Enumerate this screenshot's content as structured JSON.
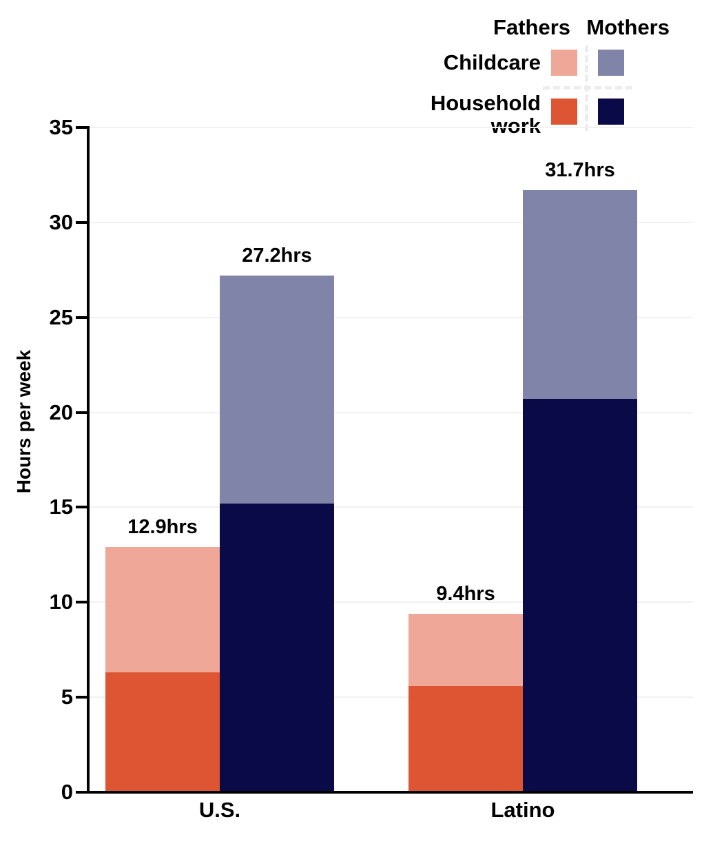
{
  "chart_data": {
    "type": "bar",
    "stacked": true,
    "title": "",
    "ylabel": "Hours per week",
    "xlabel": "",
    "ylim": [
      0,
      35
    ],
    "yticks": [
      0,
      5,
      10,
      15,
      20,
      25,
      30,
      35
    ],
    "gridlines": [
      5,
      10,
      15,
      20,
      25,
      30,
      35
    ],
    "grid": "horizontal-only",
    "legend_position": "top-right",
    "categories": [
      "U.S.",
      "Latino"
    ],
    "series_groups": [
      "Fathers",
      "Mothers"
    ],
    "stack_components": [
      "Childcare",
      "Household work"
    ],
    "bars": [
      {
        "category": "U.S.",
        "parent": "Fathers",
        "childcare": 6.6,
        "household_work": 6.3,
        "total": 12.9,
        "label": "12.9hrs"
      },
      {
        "category": "U.S.",
        "parent": "Mothers",
        "childcare": 12.0,
        "household_work": 15.2,
        "total": 27.2,
        "label": "27.2hrs"
      },
      {
        "category": "Latino",
        "parent": "Fathers",
        "childcare": 3.8,
        "household_work": 5.6,
        "total": 9.4,
        "label": "9.4hrs"
      },
      {
        "category": "Latino",
        "parent": "Mothers",
        "childcare": 11.0,
        "household_work": 20.7,
        "total": 31.7,
        "label": "31.7hrs"
      }
    ]
  },
  "legend": {
    "col_headers": [
      "Fathers",
      "Mothers"
    ],
    "row_labels": [
      "Childcare",
      "Household work"
    ]
  },
  "colors": {
    "childcare_fathers": "#efa897",
    "childcare_mothers": "#8084a8",
    "household_fathers": "#dd5532",
    "household_mothers": "#0b0a48",
    "axis": "#000000",
    "gridline": "#f1f1f1",
    "legend_divider": "#ededed",
    "text": "#000000"
  }
}
